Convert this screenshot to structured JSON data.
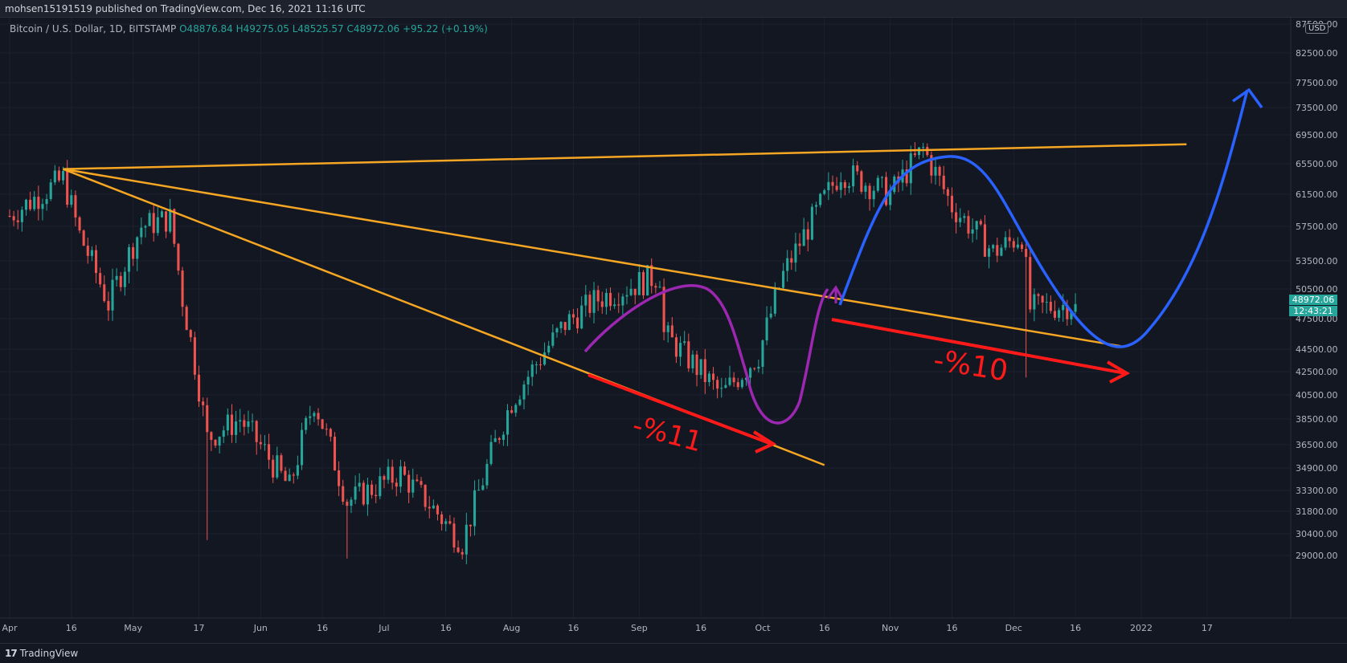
{
  "header": {
    "publish_line": "mohsen15191519 published on TradingView.com, Dec 16, 2021 11:16 UTC"
  },
  "symbol": {
    "name": "Bitcoin / U.S. Dollar, 1D, BITSTAMP",
    "open": "O48876.84",
    "high": "H49275.05",
    "low": "L48525.57",
    "close": "C48972.06",
    "change": "+95.22 (+0.19%)"
  },
  "price_badge": {
    "price": "48972.06",
    "countdown": "12:43:21",
    "currency": "USD"
  },
  "footer": {
    "brand": "TradingView",
    "logo_glyph": "17"
  },
  "colors": {
    "background": "#131722",
    "up": "#26a69a",
    "down": "#ef5350",
    "trendline": "#f5a623",
    "purple": "#9c27b0",
    "blue": "#2962ff",
    "red_arrow": "#ff1a1a"
  },
  "chart_data": {
    "type": "candlestick",
    "title": "Bitcoin / U.S. Dollar, 1D, BITSTAMP",
    "y_ticks": [
      87500,
      82500,
      77500,
      73500,
      69500,
      65500,
      61500,
      57500,
      53500,
      50500,
      47500,
      44500,
      42500,
      40500,
      38500,
      36500,
      34900,
      33300,
      31800,
      30400,
      29000
    ],
    "y_tick_labels": [
      "87500.00",
      "82500.00",
      "77500.00",
      "73500.00",
      "69500.00",
      "65500.00",
      "61500.00",
      "57500.00",
      "53500.00",
      "50500.00",
      "47500.00",
      "44500.00",
      "42500.00",
      "40500.00",
      "38500.00",
      "36500.00",
      "34900.00",
      "33300.00",
      "31800.00",
      "30400.00",
      "29000.00"
    ],
    "x_ticks": [
      "Apr",
      "16",
      "May",
      "17",
      "Jun",
      "16",
      "Jul",
      "16",
      "Aug",
      "16",
      "Sep",
      "16",
      "Oct",
      "16",
      "Nov",
      "16",
      "Dec",
      "16",
      "2022",
      "17"
    ],
    "price_path": [
      [
        "2021-04-01",
        58800
      ],
      [
        "2021-04-14",
        63500
      ],
      [
        "2021-04-18",
        56500
      ],
      [
        "2021-04-25",
        49000
      ],
      [
        "2021-05-03",
        57500
      ],
      [
        "2021-05-10",
        58500
      ],
      [
        "2021-05-13",
        49500
      ],
      [
        "2021-05-19",
        37000
      ],
      [
        "2021-05-27",
        38500
      ],
      [
        "2021-06-08",
        33500
      ],
      [
        "2021-06-14",
        40000
      ],
      [
        "2021-06-22",
        32500
      ],
      [
        "2021-07-05",
        34500
      ],
      [
        "2021-07-20",
        29800
      ],
      [
        "2021-08-01",
        40000
      ],
      [
        "2021-08-14",
        47000
      ],
      [
        "2021-08-22",
        49500
      ],
      [
        "2021-09-06",
        52000
      ],
      [
        "2021-09-07",
        46000
      ],
      [
        "2021-09-21",
        40500
      ],
      [
        "2021-09-30",
        44000
      ],
      [
        "2021-10-06",
        52000
      ],
      [
        "2021-10-20",
        64500
      ],
      [
        "2021-11-01",
        61500
      ],
      [
        "2021-11-09",
        67500
      ],
      [
        "2021-11-16",
        60000
      ],
      [
        "2021-11-26",
        54500
      ],
      [
        "2021-12-03",
        56500
      ],
      [
        "2021-12-05",
        48500
      ],
      [
        "2021-12-16",
        48972
      ]
    ],
    "wicks": [
      [
        "2021-05-19",
        30000
      ],
      [
        "2021-06-22",
        28800
      ],
      [
        "2021-12-04",
        42000
      ]
    ],
    "annotations": {
      "drop_labels": [
        "-%11",
        "-%10"
      ],
      "trendlines": [
        {
          "from": [
            "2021-04-14",
            64800
          ],
          "to": [
            "2022-01-12",
            68200
          ]
        },
        {
          "from": [
            "2021-04-14",
            64800
          ],
          "to": [
            "2021-12-27",
            44800
          ]
        },
        {
          "from": [
            "2021-04-14",
            64800
          ],
          "to": [
            "2021-10-16",
            35100
          ]
        }
      ]
    },
    "last_price": 48972.06
  }
}
